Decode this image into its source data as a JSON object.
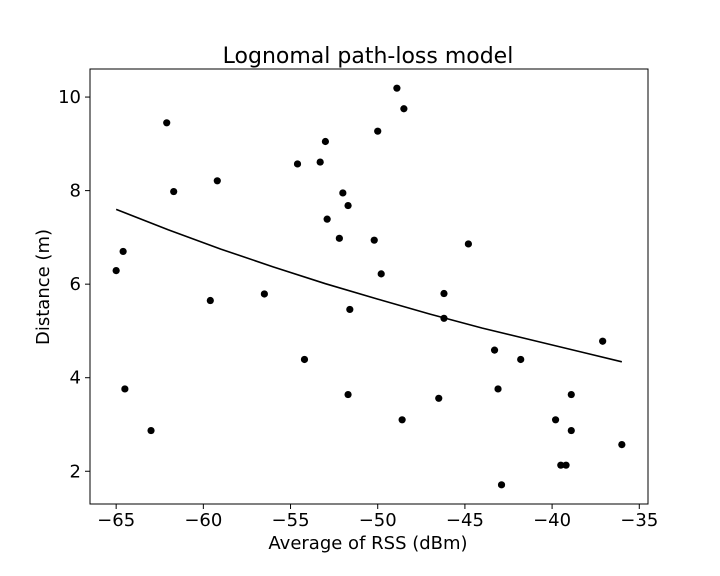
{
  "chart_data": {
    "type": "scatter",
    "title": "Lognomal path-loss model",
    "xlabel": "Average of RSS (dBm)",
    "ylabel": "Distance (m)",
    "xlim": [
      -66.5,
      -34.5
    ],
    "ylim": [
      1.3,
      10.6
    ],
    "xticks": [
      -65,
      -60,
      -55,
      -50,
      -45,
      -40,
      -35
    ],
    "xtick_labels": [
      "−65",
      "−60",
      "−55",
      "−50",
      "−45",
      "−40",
      "−35"
    ],
    "yticks": [
      2,
      4,
      6,
      8,
      10
    ],
    "ytick_labels": [
      "2",
      "4",
      "6",
      "8",
      "10"
    ],
    "grid": false,
    "legend": "none",
    "colors": {
      "points": "#000000",
      "fit_line": "#000000"
    },
    "points": [
      {
        "x": -65.0,
        "y": 6.29
      },
      {
        "x": -64.6,
        "y": 6.7
      },
      {
        "x": -64.5,
        "y": 3.76
      },
      {
        "x": -63.0,
        "y": 2.87
      },
      {
        "x": -62.1,
        "y": 9.45
      },
      {
        "x": -61.7,
        "y": 7.98
      },
      {
        "x": -59.6,
        "y": 5.65
      },
      {
        "x": -59.2,
        "y": 8.21
      },
      {
        "x": -56.5,
        "y": 5.79
      },
      {
        "x": -54.6,
        "y": 8.57
      },
      {
        "x": -54.2,
        "y": 4.39
      },
      {
        "x": -53.3,
        "y": 8.61
      },
      {
        "x": -53.0,
        "y": 9.05
      },
      {
        "x": -52.9,
        "y": 7.39
      },
      {
        "x": -52.2,
        "y": 6.98
      },
      {
        "x": -52.0,
        "y": 7.95
      },
      {
        "x": -51.7,
        "y": 7.68
      },
      {
        "x": -51.7,
        "y": 3.64
      },
      {
        "x": -51.6,
        "y": 5.46
      },
      {
        "x": -50.2,
        "y": 6.94
      },
      {
        "x": -50.0,
        "y": 9.27
      },
      {
        "x": -49.8,
        "y": 6.22
      },
      {
        "x": -48.9,
        "y": 10.19
      },
      {
        "x": -48.6,
        "y": 3.1
      },
      {
        "x": -48.5,
        "y": 9.75
      },
      {
        "x": -46.5,
        "y": 3.56
      },
      {
        "x": -46.2,
        "y": 5.8
      },
      {
        "x": -46.2,
        "y": 5.27
      },
      {
        "x": -44.8,
        "y": 6.86
      },
      {
        "x": -43.3,
        "y": 4.59
      },
      {
        "x": -43.1,
        "y": 3.76
      },
      {
        "x": -42.9,
        "y": 1.71
      },
      {
        "x": -41.8,
        "y": 4.39
      },
      {
        "x": -39.8,
        "y": 3.1
      },
      {
        "x": -39.5,
        "y": 2.13
      },
      {
        "x": -39.2,
        "y": 2.13
      },
      {
        "x": -38.9,
        "y": 3.64
      },
      {
        "x": -38.9,
        "y": 2.87
      },
      {
        "x": -37.1,
        "y": 4.78
      },
      {
        "x": -36.0,
        "y": 2.57
      }
    ],
    "fit_line": {
      "x": [
        -65,
        -62,
        -59,
        -56,
        -53,
        -50,
        -47,
        -44,
        -41,
        -38,
        -36
      ],
      "y": [
        7.6,
        7.16,
        6.75,
        6.37,
        6.01,
        5.68,
        5.36,
        5.06,
        4.79,
        4.52,
        4.34
      ]
    }
  }
}
